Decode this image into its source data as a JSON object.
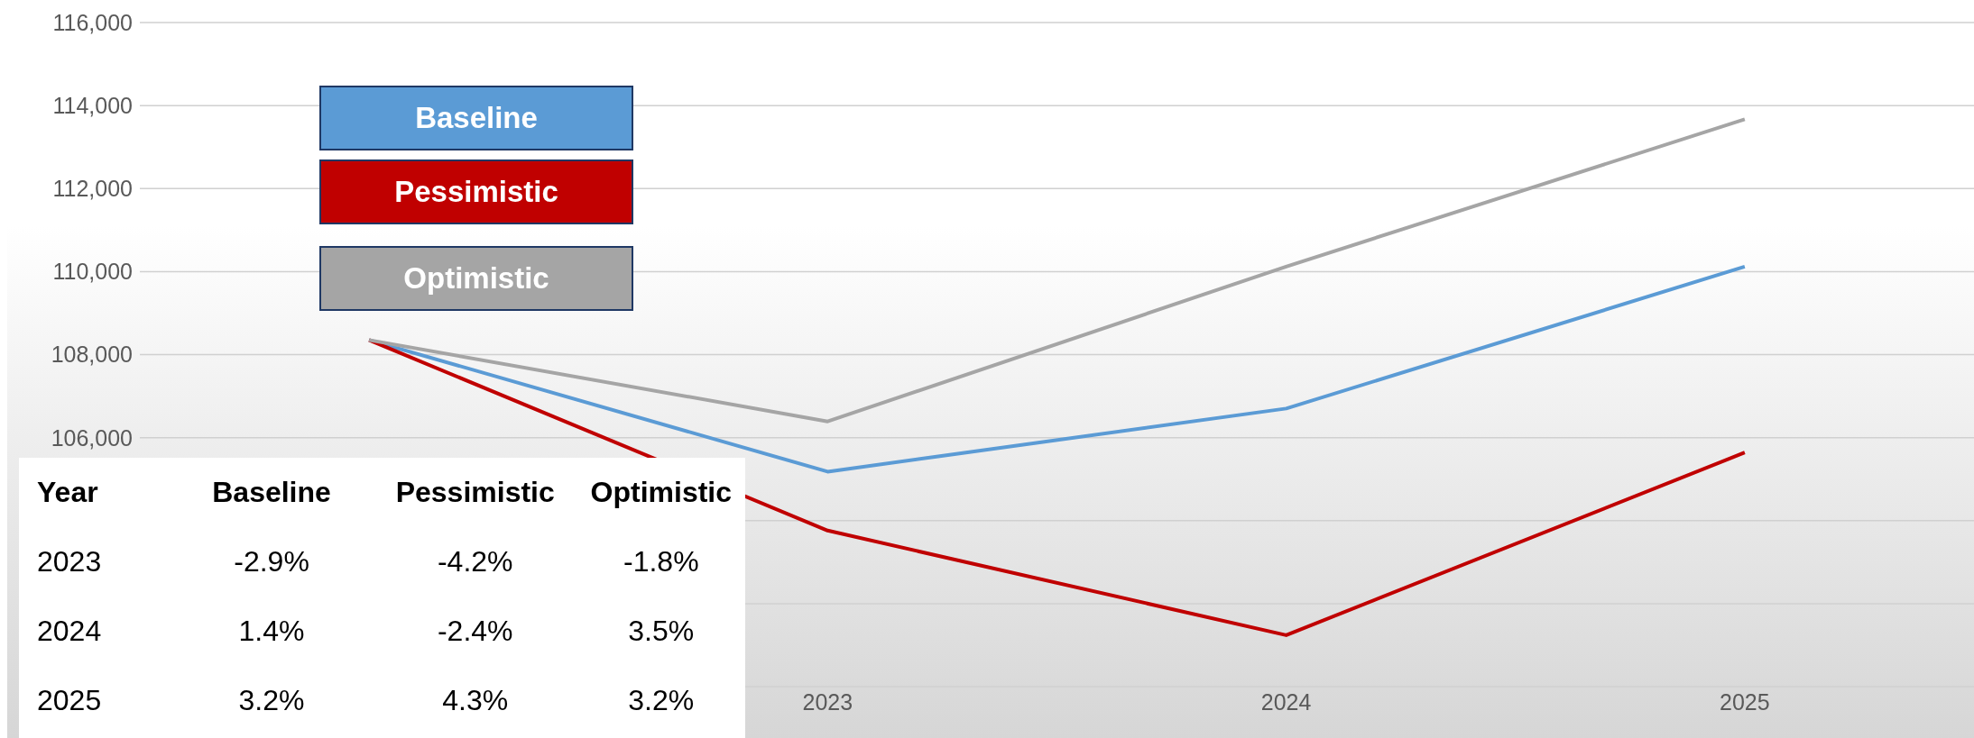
{
  "chart_data": {
    "type": "line",
    "categories": [
      null,
      "2023",
      "2024",
      "2025"
    ],
    "series": [
      {
        "name": "Baseline",
        "color": "#5b9bd5",
        "values": [
          108350,
          105180,
          106700,
          110120
        ]
      },
      {
        "name": "Pessimistic",
        "color": "#c00000",
        "values": [
          108350,
          103760,
          101240,
          105640
        ]
      },
      {
        "name": "Optimistic",
        "color": "#a5a5a5",
        "values": [
          108350,
          106390,
          110120,
          113670
        ]
      }
    ],
    "ylim": [
      100000,
      116000
    ],
    "yticks": [
      {
        "value": 100000,
        "label": null
      },
      {
        "value": 102000,
        "label": null
      },
      {
        "value": 104000,
        "label": null
      },
      {
        "value": 106000,
        "label": "106,000"
      },
      {
        "value": 108000,
        "label": "108,000"
      },
      {
        "value": 110000,
        "label": "110,000"
      },
      {
        "value": 112000,
        "label": "112,000"
      },
      {
        "value": 114000,
        "label": "114,000"
      },
      {
        "value": 116000,
        "label": "116,000"
      }
    ],
    "grid": "y",
    "legend": "top left",
    "marker": "none",
    "line_style": "solid",
    "annotations": [
      "Year",
      "Baseline",
      "Pessimistic",
      "Optimistic",
      "2023",
      "-2.9%",
      "-4.2%",
      "-1.8%",
      "2024",
      "1.4%",
      "-2.4%",
      "3.5%",
      "2025",
      "3.2%",
      "4.3%",
      "3.2%"
    ]
  }
}
